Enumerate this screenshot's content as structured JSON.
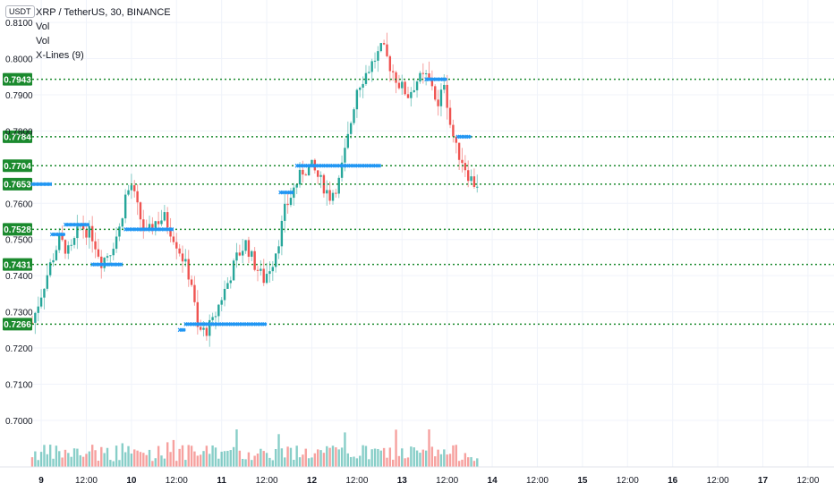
{
  "legend": {
    "symbol": "XRP / TetherUS, 30, BINANCE",
    "indicator1": "Vol",
    "indicator2": "Vol",
    "indicator3": "X-Lines (9)"
  },
  "currency": "USDT",
  "colors": {
    "up": "#26a69a",
    "down": "#ef5350",
    "hline": "#1b8a2e",
    "badge": "#1b8a2e",
    "xmark": "#2196f3",
    "grid": "#f0f3fa",
    "axisText": "#131722"
  },
  "chart_data": {
    "type": "candlestick",
    "y_ticks": [
      "0.8100",
      "0.8000",
      "0.7900",
      "0.7800",
      "0.7600",
      "0.7500",
      "0.7400",
      "0.7300",
      "0.7200",
      "0.7100",
      "0.7000"
    ],
    "ylim": [
      0.6975,
      0.8125
    ],
    "x_ticks": [
      "9",
      "12:00",
      "10",
      "12:00",
      "11",
      "12:00",
      "12",
      "12:00",
      "13",
      "12:00",
      "14",
      "12:00",
      "15",
      "12:00",
      "16",
      "12:00",
      "17",
      "12:00"
    ],
    "horizontal_levels": [
      {
        "label": "0.7943",
        "value": 0.7943
      },
      {
        "label": "0.7784",
        "value": 0.7784
      },
      {
        "label": "0.7704",
        "value": 0.7704
      },
      {
        "label": "0.7653",
        "value": 0.7653
      },
      {
        "label": "0.7528",
        "value": 0.7528
      },
      {
        "label": "0.7431",
        "value": 0.7431
      },
      {
        "label": "0.7266",
        "value": 0.7266
      }
    ],
    "close_path": [
      [
        0,
        0.727
      ],
      [
        1.2,
        0.743
      ],
      [
        1.8,
        0.75
      ],
      [
        2.5,
        0.746
      ],
      [
        3.2,
        0.754
      ],
      [
        4.0,
        0.751
      ],
      [
        4.6,
        0.744
      ],
      [
        5.2,
        0.747
      ],
      [
        5.8,
        0.753
      ],
      [
        6.2,
        0.762
      ],
      [
        6.6,
        0.765
      ],
      [
        7.1,
        0.757
      ],
      [
        7.6,
        0.751
      ],
      [
        8.2,
        0.755
      ],
      [
        8.8,
        0.756
      ],
      [
        9.5,
        0.75
      ],
      [
        10.1,
        0.744
      ],
      [
        10.6,
        0.738
      ],
      [
        11.0,
        0.725
      ],
      [
        11.5,
        0.7245
      ],
      [
        12.0,
        0.727
      ],
      [
        12.5,
        0.733
      ],
      [
        13.0,
        0.738
      ],
      [
        13.6,
        0.745
      ],
      [
        14.2,
        0.749
      ],
      [
        14.8,
        0.743
      ],
      [
        15.4,
        0.739
      ],
      [
        16.0,
        0.744
      ],
      [
        16.4,
        0.75
      ],
      [
        16.8,
        0.758
      ],
      [
        17.4,
        0.764
      ],
      [
        18.0,
        0.769
      ],
      [
        18.6,
        0.77
      ],
      [
        19.2,
        0.766
      ],
      [
        19.8,
        0.762
      ],
      [
        20.4,
        0.766
      ],
      [
        21.0,
        0.778
      ],
      [
        21.6,
        0.792
      ],
      [
        22.2,
        0.796
      ],
      [
        22.8,
        0.8
      ],
      [
        23.3,
        0.803
      ],
      [
        23.8,
        0.798
      ],
      [
        24.4,
        0.793
      ],
      [
        25.0,
        0.79
      ],
      [
        25.6,
        0.794
      ],
      [
        26.2,
        0.795
      ],
      [
        26.6,
        0.793
      ],
      [
        27.0,
        0.786
      ],
      [
        27.4,
        0.794
      ],
      [
        27.8,
        0.782
      ],
      [
        28.2,
        0.775
      ],
      [
        28.6,
        0.772
      ],
      [
        29.0,
        0.768
      ],
      [
        29.4,
        0.7655
      ]
    ],
    "volume_max": 0.1,
    "x_marks": [
      {
        "x0": 0.0,
        "x1": 1.3,
        "y": 0.7653
      },
      {
        "x0": 1.3,
        "x1": 2.2,
        "y": 0.7514
      },
      {
        "x0": 2.2,
        "x1": 3.8,
        "y": 0.7541
      },
      {
        "x0": 4.0,
        "x1": 6.0,
        "y": 0.7431
      },
      {
        "x0": 6.2,
        "x1": 9.4,
        "y": 0.7528
      },
      {
        "x0": 9.8,
        "x1": 10.2,
        "y": 0.725
      },
      {
        "x0": 10.2,
        "x1": 15.6,
        "y": 0.7266
      },
      {
        "x0": 16.5,
        "x1": 17.4,
        "y": 0.763
      },
      {
        "x0": 17.6,
        "x1": 23.2,
        "y": 0.7704
      },
      {
        "x0": 26.2,
        "x1": 27.6,
        "y": 0.7943
      },
      {
        "x0": 28.3,
        "x1": 29.2,
        "y": 0.7784
      }
    ]
  }
}
